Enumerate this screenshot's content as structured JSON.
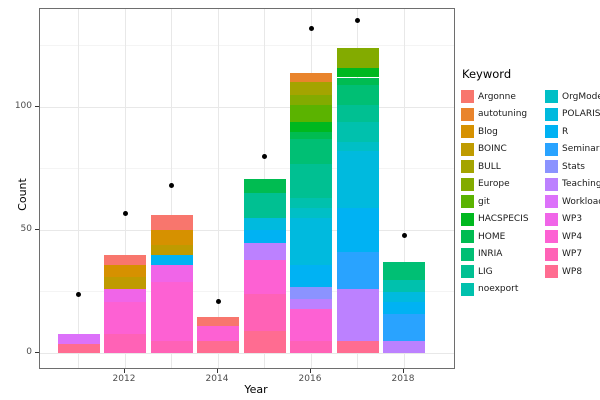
{
  "chart_data": {
    "type": "bar",
    "subtype": "stacked-bars-with-points",
    "title": "",
    "xlabel": "Year",
    "ylabel": "Count",
    "legend_title": "Keyword",
    "x_tick_labels": [
      "2012",
      "2014",
      "2016",
      "2018"
    ],
    "y_tick_labels": [
      "0",
      "50",
      "100"
    ],
    "y_major_ticks": [
      0,
      50,
      100
    ],
    "y_minor_ticks": [
      25,
      75,
      125
    ],
    "ylim": [
      -6.7,
      139.8
    ],
    "grid": "on",
    "legend_position": "right",
    "years": [
      2011,
      2012,
      2013,
      2014,
      2015,
      2016,
      2017,
      2018
    ],
    "point_series_values": [
      24,
      57,
      68,
      21,
      80,
      132,
      135,
      48
    ],
    "stacks_bottom_to_top": {
      "2011": [
        [
          "WP8",
          4
        ],
        [
          "Workload",
          4
        ]
      ],
      "2012": [
        [
          "WP7",
          8
        ],
        [
          "WP4",
          13
        ],
        [
          "WP3",
          5
        ],
        [
          "BOINC",
          5
        ],
        [
          "Blog",
          5
        ],
        [
          "Argonne",
          4
        ]
      ],
      "2013": [
        [
          "WP7",
          5
        ],
        [
          "WP4",
          24
        ],
        [
          "WP3",
          7
        ],
        [
          "R",
          4
        ],
        [
          "BOINC",
          4
        ],
        [
          "Blog",
          6
        ],
        [
          "Argonne",
          6
        ]
      ],
      "2014": [
        [
          "WP8",
          5
        ],
        [
          "WP4",
          6
        ],
        [
          "Argonne",
          4
        ]
      ],
      "2015": [
        [
          "WP8",
          9
        ],
        [
          "WP7",
          15
        ],
        [
          "WP4",
          14
        ],
        [
          "Teaching",
          7
        ],
        [
          "R",
          5
        ],
        [
          "POLARIS",
          5
        ],
        [
          "LIG",
          10
        ],
        [
          "HOME",
          6
        ]
      ],
      "2016": [
        [
          "WP7",
          5
        ],
        [
          "WP4",
          13
        ],
        [
          "Teaching",
          4
        ],
        [
          "Stats",
          5
        ],
        [
          "R",
          9
        ],
        [
          "POLARIS",
          19
        ],
        [
          "OrgMode",
          4
        ],
        [
          "noexport",
          4
        ],
        [
          "LIG",
          14
        ],
        [
          "INRIA",
          10
        ],
        [
          "HOME",
          3
        ],
        [
          "HACSPECIS",
          4
        ],
        [
          "git",
          7
        ],
        [
          "Europe",
          4
        ],
        [
          "BULL",
          5
        ],
        [
          "autotuning",
          4
        ]
      ],
      "2017": [
        [
          "WP8",
          5
        ],
        [
          "Teaching",
          21
        ],
        [
          "Seminar",
          15
        ],
        [
          "R",
          18
        ],
        [
          "POLARIS",
          23
        ],
        [
          "OrgMode",
          4
        ],
        [
          "noexport",
          8
        ],
        [
          "LIG",
          7
        ],
        [
          "INRIA",
          8
        ],
        [
          "HOME",
          3
        ],
        [
          "HACSPECIS",
          4
        ],
        [
          "Europe",
          8
        ]
      ],
      "2018": [
        [
          "Teaching",
          5
        ],
        [
          "Seminar",
          11
        ],
        [
          "R",
          5
        ],
        [
          "POLARIS",
          4
        ],
        [
          "noexport",
          5
        ],
        [
          "INRIA",
          7
        ]
      ]
    },
    "colors": {
      "Argonne": "#F8766D",
      "autotuning": "#E9842C",
      "Blog": "#D69100",
      "BOINC": "#BF9B00",
      "BULL": "#A4A400",
      "Europe": "#83AB00",
      "git": "#5BB300",
      "HACSPECIS": "#00B81F",
      "HOME": "#00BC51",
      "INRIA": "#00BF74",
      "LIG": "#00C092",
      "noexport": "#00C1AD",
      "OrgMode": "#00BFC6",
      "POLARIS": "#00BADE",
      "R": "#00B2F3",
      "Seminar": "#29A3FF",
      "Stats": "#8B93FF",
      "Teaching": "#BC81FF",
      "Workload": "#DC71FA",
      "WP3": "#F065E8",
      "WP4": "#FD61D3",
      "WP7": "#FF62B6",
      "WP8": "#FF6C91"
    },
    "point_color": "#000000",
    "grid_major_color": "#e8e8e8",
    "grid_minor_color": "#f4f4f4"
  },
  "legend": {
    "title": "Keyword",
    "columns": [
      [
        "Argonne",
        "autotuning",
        "Blog",
        "BOINC",
        "BULL",
        "Europe",
        "git",
        "HACSPECIS",
        "HOME",
        "INRIA",
        "LIG",
        "noexport"
      ],
      [
        "OrgMode",
        "POLARIS",
        "R",
        "Seminar",
        "Stats",
        "Teaching",
        "Workload",
        "WP3",
        "WP4",
        "WP7",
        "WP8"
      ]
    ]
  }
}
